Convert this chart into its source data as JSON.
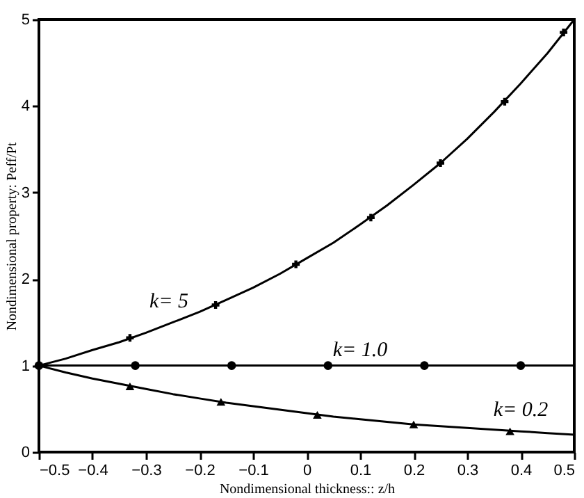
{
  "chart_data": {
    "type": "line",
    "xlabel": "Nondimensional thickness:: z/h",
    "ylabel": "Nondimensional property: Peff/Pt",
    "xlim": [
      -0.5,
      0.5
    ],
    "ylim": [
      0,
      5
    ],
    "xticks": [
      -0.5,
      -0.4,
      -0.3,
      -0.2,
      -0.1,
      0,
      0.1,
      0.2,
      0.3,
      0.4,
      0.5
    ],
    "yticks": [
      0,
      1,
      2,
      3,
      4,
      5
    ],
    "grid": false,
    "legend": false,
    "line_style": "solid",
    "series": [
      {
        "name": "k= 5",
        "marker": "none",
        "color": "#000000",
        "x": [
          -0.5,
          -0.45,
          -0.4,
          -0.35,
          -0.3,
          -0.25,
          -0.2,
          -0.15,
          -0.1,
          -0.05,
          0,
          0.05,
          0.1,
          0.15,
          0.2,
          0.25,
          0.3,
          0.35,
          0.4,
          0.45,
          0.5
        ],
        "values": [
          1,
          1.08,
          1.18,
          1.27,
          1.38,
          1.5,
          1.62,
          1.76,
          1.9,
          2.06,
          2.24,
          2.42,
          2.63,
          2.85,
          3.09,
          3.34,
          3.62,
          3.93,
          4.26,
          4.61,
          5.0
        ]
      },
      {
        "name": "k= 1.0",
        "marker": "none",
        "color": "#000000",
        "x": [
          -0.5,
          0.5
        ],
        "values": [
          1,
          1
        ]
      },
      {
        "name": "k= 0.2",
        "marker": "none",
        "color": "#000000",
        "x": [
          -0.5,
          -0.45,
          -0.4,
          -0.35,
          -0.3,
          -0.25,
          -0.2,
          -0.15,
          -0.1,
          -0.05,
          0,
          0.05,
          0.1,
          0.15,
          0.2,
          0.25,
          0.3,
          0.35,
          0.4,
          0.45,
          0.5
        ],
        "values": [
          1,
          0.92,
          0.85,
          0.79,
          0.73,
          0.67,
          0.62,
          0.57,
          0.53,
          0.49,
          0.45,
          0.41,
          0.38,
          0.35,
          0.32,
          0.3,
          0.28,
          0.26,
          0.24,
          0.22,
          0.2
        ]
      },
      {
        "type": "scatter",
        "marker": "cross",
        "color": "#000000",
        "x": [
          -0.33,
          -0.17,
          -0.02,
          0.12,
          0.25,
          0.37,
          0.48
        ],
        "values": [
          1.32,
          1.7,
          2.17,
          2.71,
          3.34,
          4.05,
          4.85
        ]
      },
      {
        "type": "scatter",
        "marker": "circle",
        "color": "#000000",
        "x": [
          -0.5,
          -0.32,
          -0.14,
          0.04,
          0.22,
          0.4
        ],
        "values": [
          1,
          1,
          1,
          1,
          1,
          1
        ]
      },
      {
        "type": "scatter",
        "marker": "triangle",
        "color": "#000000",
        "x": [
          -0.33,
          -0.16,
          0.02,
          0.2,
          0.38
        ],
        "values": [
          0.76,
          0.58,
          0.43,
          0.32,
          0.24
        ]
      }
    ]
  }
}
